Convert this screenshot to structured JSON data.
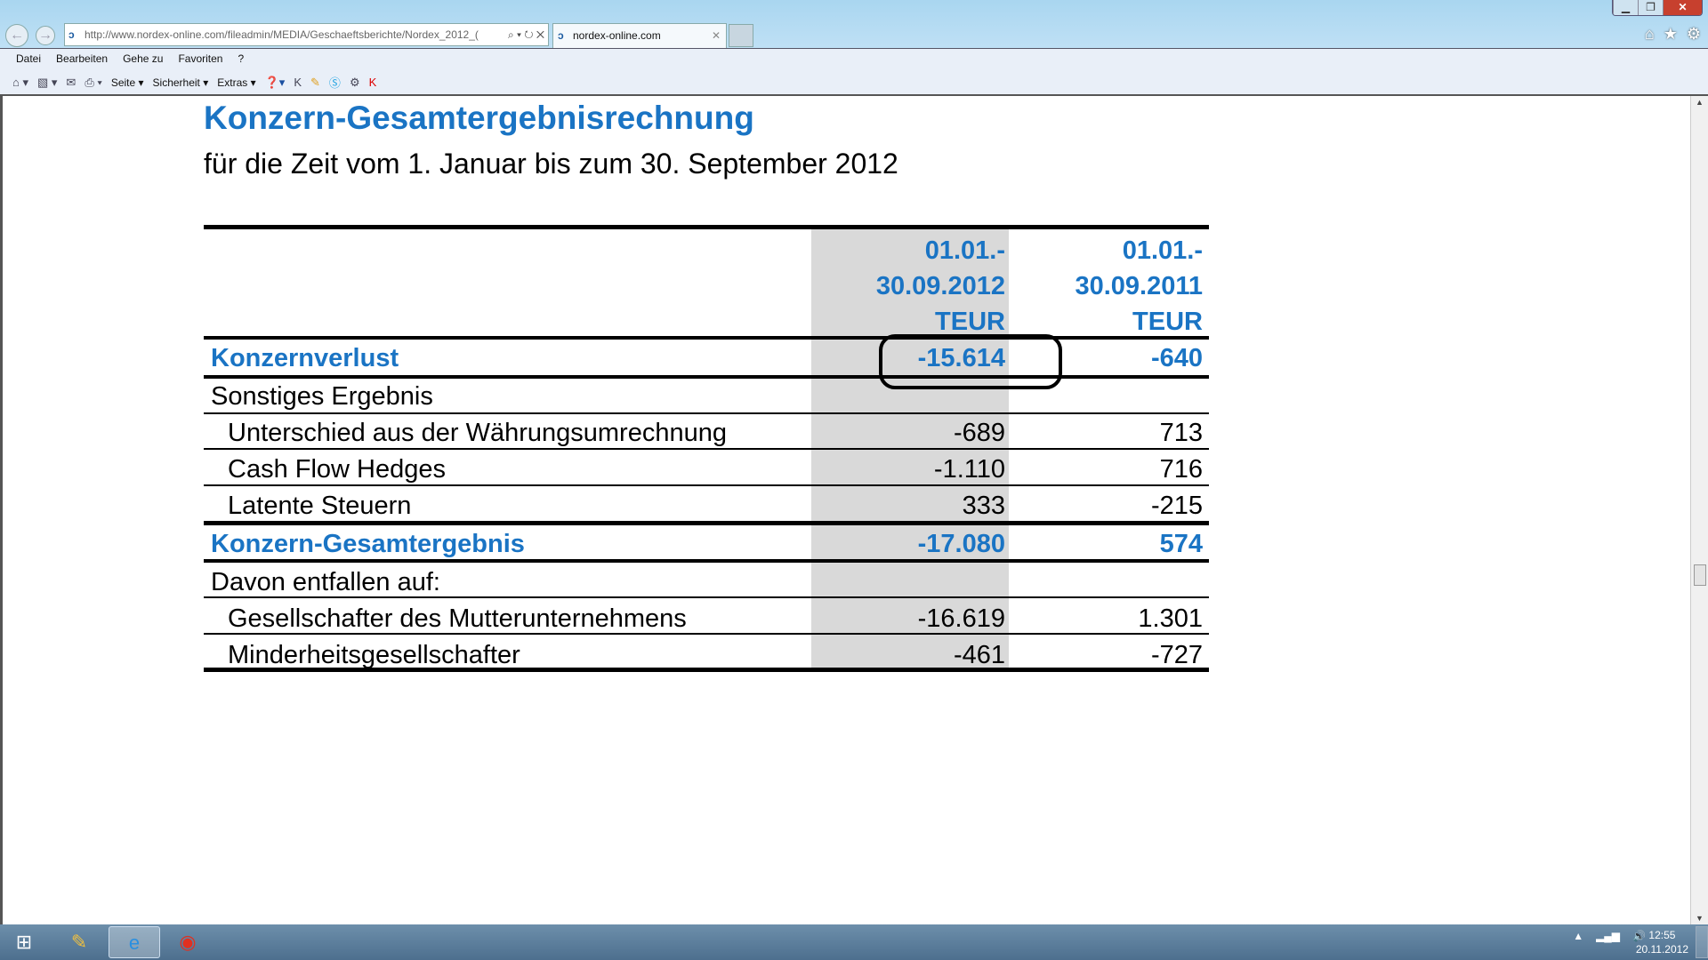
{
  "browser": {
    "url": "http://www.nordex-online.com/fileadmin/MEDIA/Geschaeftsberichte/Nordex_2012_(",
    "tab_title": "nordex-online.com",
    "menu": [
      "Datei",
      "Bearbeiten",
      "Gehe zu",
      "Favoriten",
      "?"
    ],
    "commands": {
      "page": "Seite ▾",
      "security": "Sicherheit ▾",
      "extras": "Extras ▾"
    }
  },
  "document": {
    "title": "Konzern-Gesamtergebnisrechnung",
    "subtitle": "für die Zeit vom 1. Januar bis zum 30. September 2012",
    "columns": [
      {
        "line1": "01.01.-",
        "line2": "30.09.2012",
        "unit": "TEUR"
      },
      {
        "line1": "01.01.-",
        "line2": "30.09.2011",
        "unit": "TEUR"
      }
    ],
    "rows": [
      {
        "label": "Konzernverlust",
        "v2012": "-15.614",
        "v2011": "-640"
      },
      {
        "label": "Sonstiges Ergebnis",
        "v2012": "",
        "v2011": ""
      },
      {
        "label": "Unterschied aus der Währungsumrechnung",
        "v2012": "-689",
        "v2011": "713"
      },
      {
        "label": "Cash Flow Hedges",
        "v2012": "-1.110",
        "v2011": "716"
      },
      {
        "label": "Latente Steuern",
        "v2012": "333",
        "v2011": "-215"
      },
      {
        "label": "Konzern-Gesamtergebnis",
        "v2012": "-17.080",
        "v2011": "574"
      },
      {
        "label": "Davon entfallen auf:",
        "v2012": "",
        "v2011": ""
      },
      {
        "label": "Gesellschafter des Mutterunternehmens",
        "v2012": "-16.619",
        "v2011": "1.301"
      },
      {
        "label": "Minderheitsgesellschafter",
        "v2012": "-461",
        "v2011": "-727"
      }
    ],
    "accent_color": "#1a74c4"
  },
  "taskbar": {
    "time": "12:55",
    "date": "20.11.2012"
  }
}
